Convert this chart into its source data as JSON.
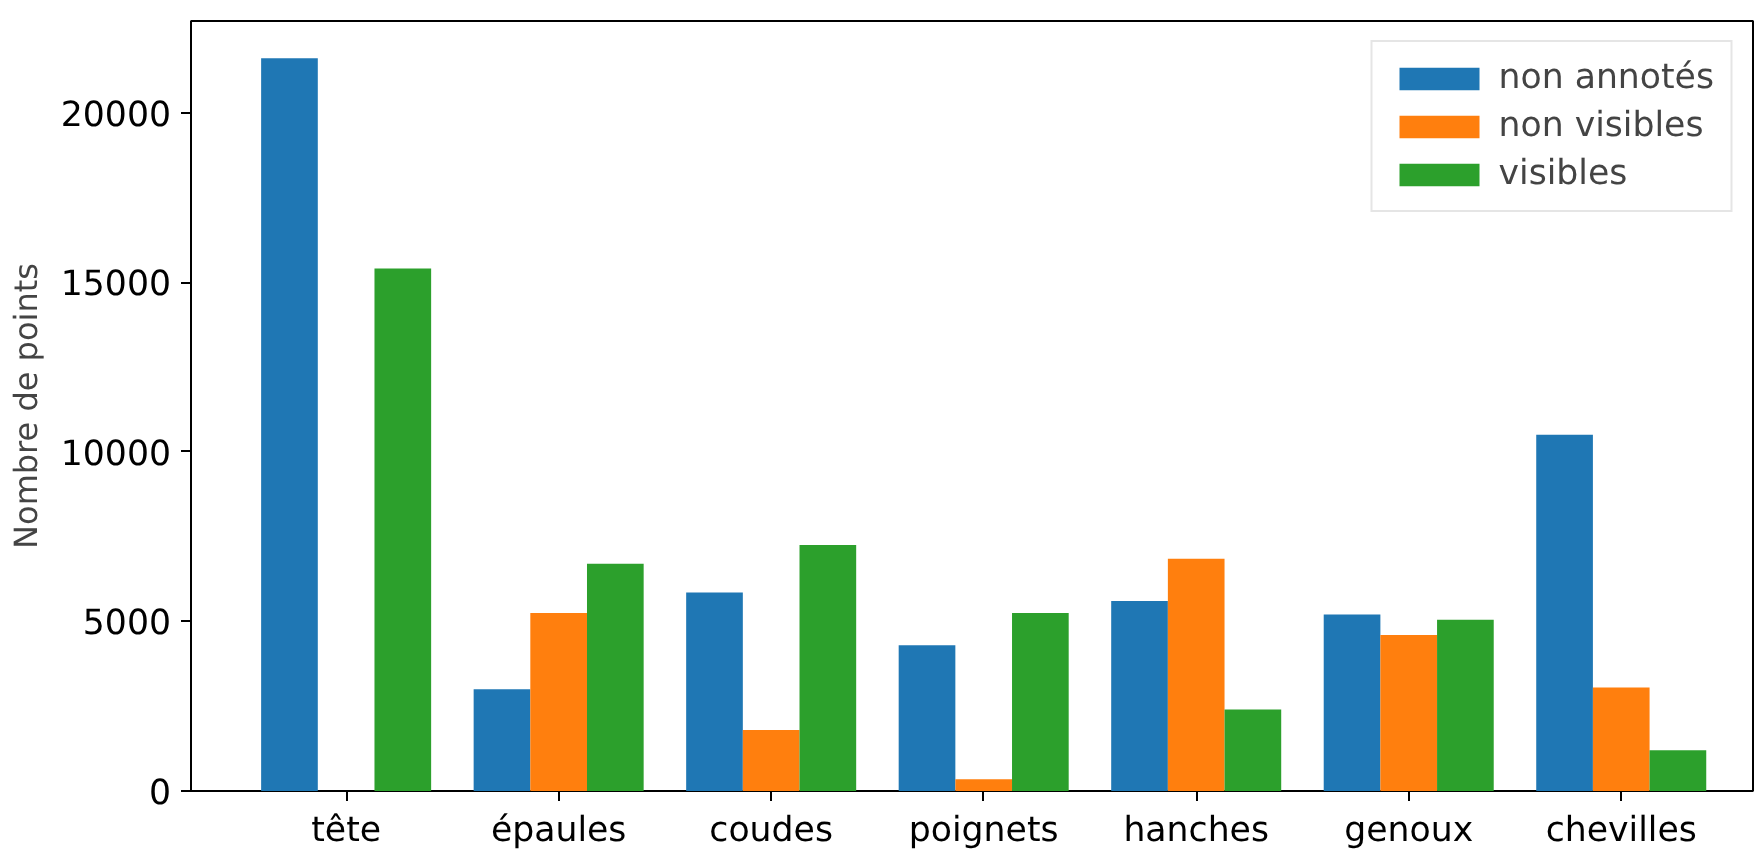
{
  "chart_data": {
    "type": "bar",
    "ylabel": "Nombre de points",
    "categories": [
      "tête",
      "épaules",
      "coudes",
      "poignets",
      "hanches",
      "genoux",
      "chevilles"
    ],
    "series": [
      {
        "name": "non annotés",
        "color": "#1f77b4",
        "values": [
          21600,
          3000,
          5850,
          4300,
          5600,
          5200,
          10500
        ]
      },
      {
        "name": "non visibles",
        "color": "#ff7f0e",
        "values": [
          0,
          5250,
          1800,
          350,
          6850,
          4600,
          3050
        ]
      },
      {
        "name": "visibles",
        "color": "#2ca02c",
        "values": [
          15400,
          6700,
          7250,
          5250,
          2400,
          5050,
          1200
        ]
      }
    ],
    "ylim": [
      0,
      22700
    ],
    "yticks": [
      0,
      5000,
      10000,
      15000,
      20000
    ],
    "grid": false,
    "legend": "top right"
  }
}
